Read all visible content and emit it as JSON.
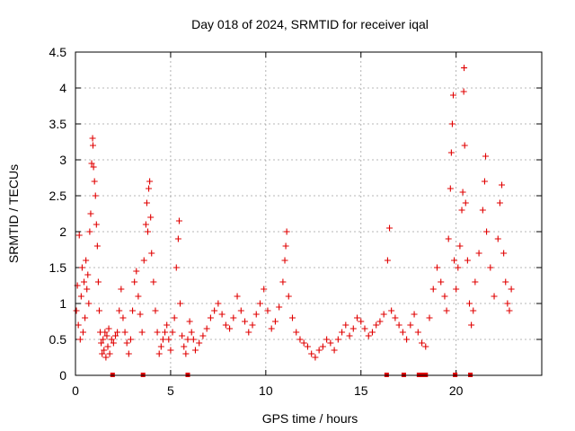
{
  "chart_data": {
    "type": "scatter",
    "title": "Day 018 of 2024, SRMTID for receiver iqal",
    "xlabel": "GPS time / hours",
    "ylabel": "SRMTID / TECUs",
    "xlim": [
      0,
      24.5
    ],
    "ylim": [
      0,
      4.5
    ],
    "x_ticks": [
      0,
      5,
      10,
      15,
      20
    ],
    "x_tick_labels": [
      "0",
      "5",
      "10",
      "15",
      "20"
    ],
    "y_ticks": [
      0,
      0.5,
      1,
      1.5,
      2,
      2.5,
      3,
      3.5,
      4,
      4.5
    ],
    "y_tick_labels": [
      "0",
      "0.5",
      "1",
      "1.5",
      "2",
      "2.5",
      "3",
      "3.5",
      "4",
      "4.5"
    ],
    "grid": true,
    "marker": "+",
    "marker_color": "#e00000",
    "series": [
      {
        "name": "SRMTID",
        "points": [
          [
            0.05,
            0.9
          ],
          [
            0.1,
            1.25
          ],
          [
            0.15,
            0.7
          ],
          [
            0.2,
            1.95
          ],
          [
            0.25,
            0.5
          ],
          [
            0.3,
            1.1
          ],
          [
            0.35,
            1.5
          ],
          [
            0.4,
            0.6
          ],
          [
            0.45,
            1.3
          ],
          [
            0.5,
            0.8
          ],
          [
            0.55,
            1.6
          ],
          [
            0.6,
            1.2
          ],
          [
            0.65,
            1.4
          ],
          [
            0.7,
            1.0
          ],
          [
            0.75,
            2.0
          ],
          [
            0.8,
            2.25
          ],
          [
            0.85,
            2.95
          ],
          [
            0.9,
            3.3
          ],
          [
            0.92,
            3.2
          ],
          [
            0.95,
            2.9
          ],
          [
            1.0,
            2.7
          ],
          [
            1.05,
            2.5
          ],
          [
            1.1,
            2.1
          ],
          [
            1.15,
            1.8
          ],
          [
            1.2,
            1.3
          ],
          [
            1.25,
            0.9
          ],
          [
            1.3,
            0.6
          ],
          [
            1.35,
            0.45
          ],
          [
            1.4,
            0.3
          ],
          [
            1.45,
            0.5
          ],
          [
            1.5,
            0.35
          ],
          [
            1.55,
            0.6
          ],
          [
            1.6,
            0.25
          ],
          [
            1.65,
            0.55
          ],
          [
            1.7,
            0.4
          ],
          [
            1.75,
            0.65
          ],
          [
            1.8,
            0.3
          ],
          [
            1.9,
            0.5
          ],
          [
            2.0,
            0.45
          ],
          [
            2.1,
            0.55
          ],
          [
            2.2,
            0.6
          ],
          [
            2.3,
            0.9
          ],
          [
            2.4,
            1.2
          ],
          [
            2.5,
            0.8
          ],
          [
            2.6,
            0.6
          ],
          [
            2.7,
            0.45
          ],
          [
            2.8,
            0.3
          ],
          [
            2.9,
            0.5
          ],
          [
            3.0,
            0.9
          ],
          [
            3.1,
            1.3
          ],
          [
            3.2,
            1.45
          ],
          [
            3.3,
            1.1
          ],
          [
            3.4,
            0.85
          ],
          [
            3.5,
            0.6
          ],
          [
            3.6,
            1.6
          ],
          [
            3.7,
            2.1
          ],
          [
            3.75,
            2.4
          ],
          [
            3.8,
            2.0
          ],
          [
            3.85,
            2.6
          ],
          [
            3.9,
            2.7
          ],
          [
            3.95,
            2.2
          ],
          [
            4.0,
            1.7
          ],
          [
            4.1,
            1.3
          ],
          [
            4.2,
            0.9
          ],
          [
            4.3,
            0.6
          ],
          [
            4.4,
            0.3
          ],
          [
            4.5,
            0.4
          ],
          [
            4.6,
            0.5
          ],
          [
            4.7,
            0.6
          ],
          [
            4.8,
            0.7
          ],
          [
            4.9,
            0.5
          ],
          [
            5.0,
            0.35
          ],
          [
            5.1,
            0.6
          ],
          [
            5.2,
            0.8
          ],
          [
            5.3,
            1.5
          ],
          [
            5.4,
            1.9
          ],
          [
            5.45,
            2.15
          ],
          [
            5.5,
            1.0
          ],
          [
            5.6,
            0.55
          ],
          [
            5.7,
            0.4
          ],
          [
            5.8,
            0.3
          ],
          [
            5.9,
            0.5
          ],
          [
            6.0,
            0.75
          ],
          [
            6.1,
            0.6
          ],
          [
            6.2,
            0.5
          ],
          [
            6.3,
            0.35
          ],
          [
            6.5,
            0.45
          ],
          [
            6.7,
            0.55
          ],
          [
            6.9,
            0.65
          ],
          [
            7.1,
            0.8
          ],
          [
            7.3,
            0.9
          ],
          [
            7.5,
            1.0
          ],
          [
            7.7,
            0.85
          ],
          [
            7.9,
            0.7
          ],
          [
            8.1,
            0.65
          ],
          [
            8.3,
            0.8
          ],
          [
            8.5,
            1.1
          ],
          [
            8.7,
            0.9
          ],
          [
            8.9,
            0.75
          ],
          [
            9.1,
            0.6
          ],
          [
            9.3,
            0.7
          ],
          [
            9.5,
            0.85
          ],
          [
            9.7,
            1.0
          ],
          [
            9.9,
            1.2
          ],
          [
            10.1,
            0.9
          ],
          [
            10.3,
            0.65
          ],
          [
            10.5,
            0.75
          ],
          [
            10.7,
            0.95
          ],
          [
            10.9,
            1.3
          ],
          [
            11.0,
            1.6
          ],
          [
            11.05,
            1.8
          ],
          [
            11.1,
            2.0
          ],
          [
            11.2,
            1.1
          ],
          [
            11.4,
            0.8
          ],
          [
            11.6,
            0.6
          ],
          [
            11.8,
            0.5
          ],
          [
            12.0,
            0.45
          ],
          [
            12.2,
            0.4
          ],
          [
            12.4,
            0.3
          ],
          [
            12.6,
            0.25
          ],
          [
            12.8,
            0.35
          ],
          [
            13.0,
            0.4
          ],
          [
            13.2,
            0.5
          ],
          [
            13.4,
            0.45
          ],
          [
            13.6,
            0.35
          ],
          [
            13.8,
            0.5
          ],
          [
            14.0,
            0.6
          ],
          [
            14.2,
            0.7
          ],
          [
            14.4,
            0.55
          ],
          [
            14.6,
            0.65
          ],
          [
            14.8,
            0.8
          ],
          [
            15.0,
            0.75
          ],
          [
            15.2,
            0.65
          ],
          [
            15.4,
            0.55
          ],
          [
            15.6,
            0.6
          ],
          [
            15.8,
            0.7
          ],
          [
            16.0,
            0.75
          ],
          [
            16.2,
            0.85
          ],
          [
            16.4,
            1.6
          ],
          [
            16.5,
            2.05
          ],
          [
            16.6,
            0.9
          ],
          [
            16.8,
            0.8
          ],
          [
            17.0,
            0.7
          ],
          [
            17.2,
            0.6
          ],
          [
            17.4,
            0.5
          ],
          [
            17.6,
            0.7
          ],
          [
            17.8,
            0.85
          ],
          [
            18.0,
            0.6
          ],
          [
            18.2,
            0.45
          ],
          [
            18.4,
            0.4
          ],
          [
            18.6,
            0.8
          ],
          [
            18.8,
            1.2
          ],
          [
            19.0,
            1.5
          ],
          [
            19.2,
            1.3
          ],
          [
            19.4,
            1.1
          ],
          [
            19.5,
            0.9
          ],
          [
            19.6,
            1.9
          ],
          [
            19.7,
            2.6
          ],
          [
            19.75,
            3.1
          ],
          [
            19.8,
            3.5
          ],
          [
            19.85,
            3.9
          ],
          [
            19.9,
            1.6
          ],
          [
            20.0,
            1.2
          ],
          [
            20.1,
            1.5
          ],
          [
            20.2,
            1.8
          ],
          [
            20.3,
            2.3
          ],
          [
            20.35,
            2.55
          ],
          [
            20.4,
            3.95
          ],
          [
            20.42,
            4.28
          ],
          [
            20.45,
            3.2
          ],
          [
            20.5,
            2.4
          ],
          [
            20.6,
            1.6
          ],
          [
            20.7,
            1.0
          ],
          [
            20.8,
            0.7
          ],
          [
            20.9,
            0.9
          ],
          [
            21.0,
            1.3
          ],
          [
            21.2,
            1.7
          ],
          [
            21.4,
            2.3
          ],
          [
            21.5,
            2.7
          ],
          [
            21.55,
            3.05
          ],
          [
            21.6,
            2.0
          ],
          [
            21.8,
            1.5
          ],
          [
            22.0,
            1.1
          ],
          [
            22.2,
            1.9
          ],
          [
            22.3,
            2.4
          ],
          [
            22.4,
            2.65
          ],
          [
            22.5,
            1.7
          ],
          [
            22.6,
            1.3
          ],
          [
            22.7,
            1.0
          ],
          [
            22.8,
            0.9
          ],
          [
            22.9,
            1.2
          ]
        ],
        "zero_points": [
          1.95,
          3.55,
          5.9,
          16.35,
          17.25,
          18.05,
          18.25,
          18.4,
          19.95,
          20.75
        ]
      }
    ]
  }
}
